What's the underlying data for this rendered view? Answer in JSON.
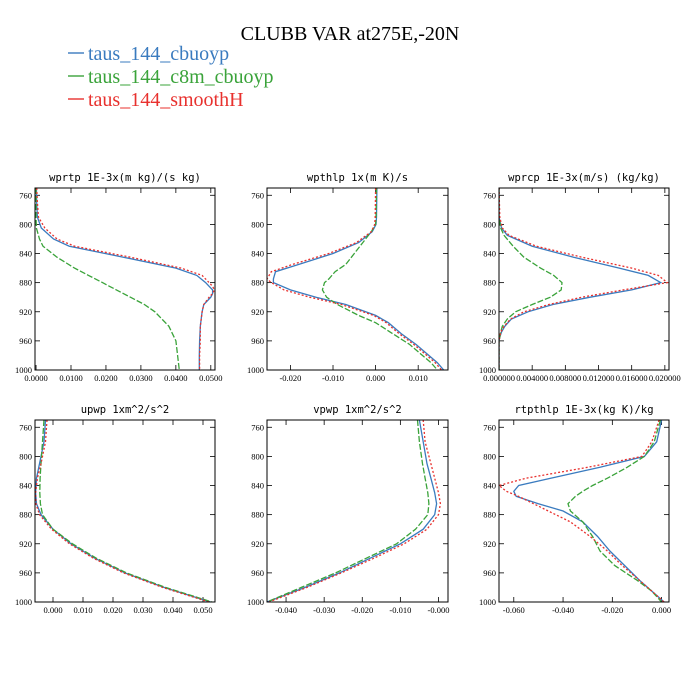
{
  "figure": {
    "title": "CLUBB VAR at275E,-20N"
  },
  "legend": [
    {
      "label": "taus_144_cbuoyp",
      "color": "#3a7bbf",
      "dash": "none"
    },
    {
      "label": "taus_144_c8m_cbuoyp",
      "color": "#3aa33a",
      "dash": "6,2"
    },
    {
      "label": "taus_144_smoothH",
      "color": "#e8312e",
      "dash": "2,2"
    }
  ],
  "chart_data": [
    {
      "type": "line",
      "title": "wprtp  1E-3x(m kg)/(s kg)",
      "xlim": [
        -0.0003,
        0.0512
      ],
      "ylim": [
        1000,
        750
      ],
      "yticks": [
        760,
        800,
        840,
        880,
        920,
        960,
        1000
      ],
      "xticks": [
        0.0,
        0.01,
        0.02,
        0.03,
        0.04,
        0.05
      ],
      "xtick_labels": [
        "0.0000",
        "0.0100",
        "0.0200",
        "0.0300",
        "0.0400",
        "0.0500"
      ],
      "y": [
        750,
        770,
        790,
        805,
        820,
        830,
        845,
        860,
        870,
        880,
        885,
        890,
        895,
        900,
        910,
        920,
        940,
        960,
        980,
        1000
      ],
      "series": [
        {
          "name": "taus_144_cbuoyp",
          "values": [
            0.0001,
            0.0002,
            0.0004,
            0.0015,
            0.005,
            0.0095,
            0.025,
            0.04,
            0.046,
            0.0485,
            0.0495,
            0.0505,
            0.0505,
            0.05,
            0.048,
            0.0475,
            0.047,
            0.0468,
            0.0467,
            0.0467
          ]
        },
        {
          "name": "taus_144_c8m_cbuoyp",
          "values": [
            0.0,
            0.0,
            0.0,
            0.0001,
            0.001,
            0.002,
            0.006,
            0.011,
            0.015,
            0.019,
            0.021,
            0.023,
            0.025,
            0.027,
            0.031,
            0.034,
            0.038,
            0.04,
            0.0405,
            0.041
          ]
        },
        {
          "name": "taus_144_smoothH",
          "values": [
            0.0002,
            0.0004,
            0.0007,
            0.0025,
            0.006,
            0.011,
            0.027,
            0.0415,
            0.0475,
            0.0495,
            0.0505,
            0.051,
            0.0505,
            0.0495,
            0.048,
            0.0475,
            0.047,
            0.047,
            0.0468,
            0.0468
          ]
        }
      ]
    },
    {
      "type": "line",
      "title": "wpthlp  1x(m K)/s",
      "xlim": [
        -0.0255,
        0.017
      ],
      "ylim": [
        1000,
        750
      ],
      "yticks": [
        760,
        800,
        840,
        880,
        920,
        960,
        1000
      ],
      "xticks": [
        -0.02,
        -0.01,
        0.0,
        0.01
      ],
      "xtick_labels": [
        "-0.020",
        "-0.010",
        "0.000",
        "0.010"
      ],
      "y": [
        750,
        790,
        800,
        810,
        825,
        840,
        855,
        865,
        875,
        880,
        890,
        900,
        910,
        925,
        935,
        950,
        965,
        980,
        990,
        1000
      ],
      "series": [
        {
          "name": "taus_144_cbuoyp",
          "values": [
            0.0003,
            0.0002,
            0.0001,
            -0.0008,
            -0.004,
            -0.01,
            -0.018,
            -0.0235,
            -0.024,
            -0.024,
            -0.02,
            -0.014,
            -0.007,
            0.0,
            0.003,
            0.006,
            0.0095,
            0.0125,
            0.0145,
            0.016
          ]
        },
        {
          "name": "taus_144_c8m_cbuoyp",
          "values": [
            0.0002,
            0.0001,
            0.0,
            -0.001,
            -0.003,
            -0.005,
            -0.007,
            -0.0095,
            -0.011,
            -0.012,
            -0.0125,
            -0.0115,
            -0.009,
            -0.004,
            0.0,
            0.004,
            0.008,
            0.011,
            0.013,
            0.0145
          ]
        },
        {
          "name": "taus_144_smoothH",
          "values": [
            0.0,
            -0.0001,
            -0.0002,
            -0.001,
            -0.0045,
            -0.011,
            -0.0195,
            -0.0245,
            -0.0255,
            -0.0245,
            -0.0215,
            -0.0155,
            -0.008,
            -0.0005,
            0.0025,
            0.0055,
            0.009,
            0.012,
            0.014,
            0.0155
          ]
        }
      ]
    },
    {
      "type": "line",
      "title": "wprcp  1E-3x(m/s) (kg/kg)",
      "xlim": [
        0.0,
        0.0205
      ],
      "ylim": [
        1000,
        750
      ],
      "yticks": [
        760,
        800,
        840,
        880,
        920,
        960,
        1000
      ],
      "xticks": [
        0.0,
        0.004,
        0.008,
        0.012,
        0.016,
        0.02
      ],
      "xtick_labels": [
        "0.000000",
        "0.004000",
        "0.008000",
        "0.012000",
        "0.016000",
        "0.020000"
      ],
      "y": [
        750,
        790,
        805,
        815,
        830,
        845,
        860,
        870,
        880,
        890,
        900,
        910,
        920,
        930,
        940,
        948,
        955,
        960,
        980,
        1000
      ],
      "series": [
        {
          "name": "taus_144_cbuoyp",
          "values": [
            0.0,
            0.0,
            0.0003,
            0.001,
            0.004,
            0.009,
            0.0145,
            0.018,
            0.0195,
            0.016,
            0.011,
            0.0065,
            0.0035,
            0.0015,
            0.0007,
            0.0003,
            0.0001,
            0.0,
            0.0,
            0.0
          ]
        },
        {
          "name": "taus_144_c8m_cbuoyp",
          "values": [
            0.0,
            0.0,
            0.0002,
            0.0006,
            0.0017,
            0.003,
            0.005,
            0.0066,
            0.0076,
            0.0075,
            0.0062,
            0.004,
            0.002,
            0.001,
            0.0004,
            0.0002,
            0.0001,
            0.0,
            0.0,
            0.0
          ]
        },
        {
          "name": "taus_144_smoothH",
          "values": [
            0.0,
            0.0001,
            0.0004,
            0.0012,
            0.0045,
            0.01,
            0.016,
            0.0192,
            0.0203,
            0.015,
            0.01,
            0.006,
            0.003,
            0.0014,
            0.0006,
            0.0002,
            0.0001,
            0.0,
            0.0,
            0.0
          ]
        }
      ]
    },
    {
      "type": "line",
      "title": "upwp  1xm^2/s^2",
      "xlim": [
        -0.006,
        0.054
      ],
      "ylim": [
        1000,
        750
      ],
      "yticks": [
        760,
        800,
        840,
        880,
        920,
        960,
        1000
      ],
      "xticks": [
        0.0,
        0.01,
        0.02,
        0.03,
        0.04,
        0.05
      ],
      "xtick_labels": [
        "0.000",
        "0.010",
        "0.020",
        "0.030",
        "0.040",
        "0.050"
      ],
      "y": [
        750,
        780,
        810,
        830,
        850,
        865,
        880,
        900,
        920,
        940,
        960,
        980,
        1000
      ],
      "series": [
        {
          "name": "taus_144_cbuoyp",
          "values": [
            -0.0025,
            -0.003,
            -0.0045,
            -0.0055,
            -0.0058,
            -0.0055,
            -0.004,
            0.0,
            0.006,
            0.014,
            0.024,
            0.037,
            0.0525
          ]
        },
        {
          "name": "taus_144_c8m_cbuoyp",
          "values": [
            -0.003,
            -0.0035,
            -0.004,
            -0.0043,
            -0.0044,
            -0.0042,
            -0.0035,
            0.0,
            0.0065,
            0.0145,
            0.0245,
            0.0375,
            0.053
          ]
        },
        {
          "name": "taus_144_smoothH",
          "values": [
            -0.002,
            -0.0025,
            -0.004,
            -0.0052,
            -0.0058,
            -0.0057,
            -0.0045,
            -0.0005,
            0.0055,
            0.0135,
            0.0235,
            0.0365,
            0.052
          ]
        }
      ]
    },
    {
      "type": "line",
      "title": "vpwp  1xm^2/s^2",
      "xlim": [
        -0.045,
        0.0025
      ],
      "ylim": [
        1000,
        750
      ],
      "yticks": [
        760,
        800,
        840,
        880,
        920,
        960,
        1000
      ],
      "xticks": [
        -0.04,
        -0.03,
        -0.02,
        -0.01,
        0.0
      ],
      "xtick_labels": [
        "-0.040",
        "-0.030",
        "-0.020",
        "-0.010",
        "-0.000"
      ],
      "y": [
        750,
        780,
        810,
        830,
        850,
        865,
        880,
        900,
        920,
        940,
        960,
        980,
        1000
      ],
      "series": [
        {
          "name": "taus_144_cbuoyp",
          "values": [
            -0.005,
            -0.004,
            -0.003,
            -0.002,
            -0.001,
            -0.0005,
            -0.001,
            -0.004,
            -0.01,
            -0.018,
            -0.026,
            -0.035,
            -0.045
          ]
        },
        {
          "name": "taus_144_c8m_cbuoyp",
          "values": [
            -0.0055,
            -0.005,
            -0.0042,
            -0.0035,
            -0.0028,
            -0.0025,
            -0.0028,
            -0.006,
            -0.011,
            -0.019,
            -0.027,
            -0.036,
            -0.045
          ]
        },
        {
          "name": "taus_144_smoothH",
          "values": [
            -0.004,
            -0.0035,
            -0.002,
            -0.001,
            0.0,
            0.0005,
            0.0,
            -0.003,
            -0.009,
            -0.017,
            -0.0255,
            -0.0345,
            -0.0445
          ]
        }
      ]
    },
    {
      "type": "line",
      "title": "rtpthlp  1E-3x(kg K)/kg",
      "xlim": [
        -0.066,
        0.003
      ],
      "ylim": [
        1000,
        750
      ],
      "yticks": [
        760,
        800,
        840,
        880,
        920,
        960,
        1000
      ],
      "xticks": [
        -0.06,
        -0.04,
        -0.02,
        0.0
      ],
      "xtick_labels": [
        "-0.060",
        "-0.040",
        "-0.020",
        "0.000"
      ],
      "y": [
        750,
        780,
        800,
        815,
        830,
        840,
        848,
        855,
        865,
        875,
        890,
        910,
        930,
        950,
        970,
        985,
        1000
      ],
      "series": [
        {
          "name": "taus_144_cbuoyp",
          "values": [
            0.0,
            -0.002,
            -0.007,
            -0.025,
            -0.045,
            -0.058,
            -0.06,
            -0.059,
            -0.05,
            -0.04,
            -0.032,
            -0.026,
            -0.021,
            -0.015,
            -0.009,
            -0.004,
            0.001
          ]
        },
        {
          "name": "taus_144_c8m_cbuoyp",
          "values": [
            -0.0005,
            -0.003,
            -0.007,
            -0.014,
            -0.022,
            -0.028,
            -0.032,
            -0.035,
            -0.038,
            -0.037,
            -0.032,
            -0.028,
            -0.025,
            -0.019,
            -0.01,
            -0.004,
            0.0
          ]
        },
        {
          "name": "taus_144_smoothH",
          "values": [
            -0.001,
            -0.004,
            -0.008,
            -0.03,
            -0.055,
            -0.066,
            -0.063,
            -0.058,
            -0.052,
            -0.046,
            -0.037,
            -0.029,
            -0.022,
            -0.016,
            -0.009,
            -0.004,
            0.001
          ]
        }
      ]
    }
  ]
}
